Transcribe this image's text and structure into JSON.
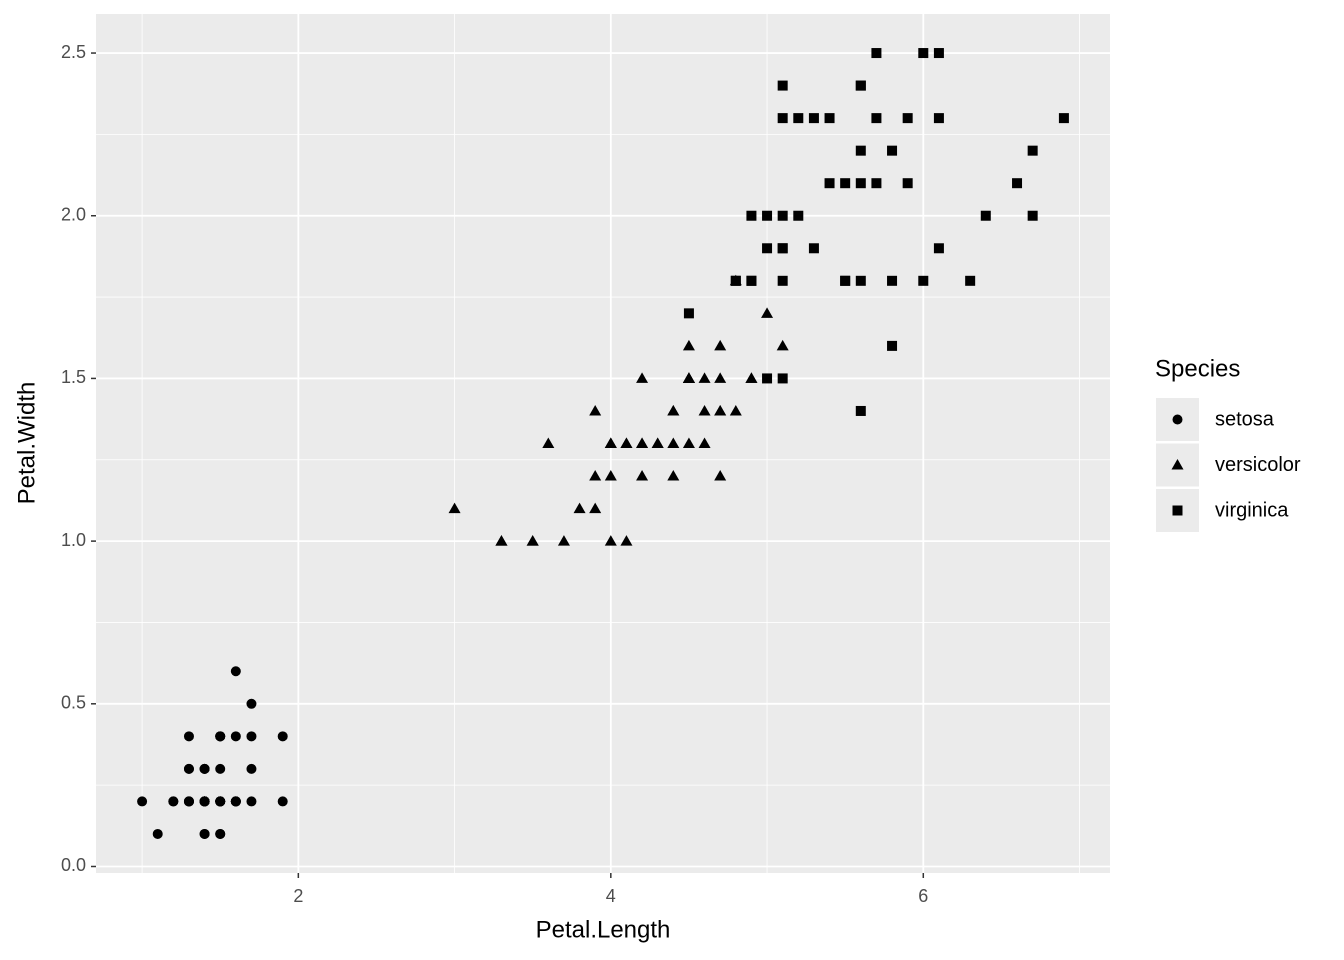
{
  "chart_data": {
    "type": "scatter",
    "xlabel": "Petal.Length",
    "ylabel": "Petal.Width",
    "legend_title": "Species",
    "legend_position": "right",
    "xlim": [
      0.705,
      7.195
    ],
    "ylim": [
      -0.02,
      2.62
    ],
    "xticks": [
      2,
      4,
      6
    ],
    "yticks": [
      {
        "value": 0,
        "label": "0.0"
      },
      0.5,
      {
        "value": 1,
        "label": "1.0"
      },
      1.5,
      {
        "value": 2,
        "label": "2.0"
      },
      2.5
    ],
    "grid": true,
    "series": [
      {
        "name": "setosa",
        "shape": "circle",
        "color": "#000000",
        "x": [
          1.4,
          1.4,
          1.3,
          1.5,
          1.4,
          1.7,
          1.4,
          1.5,
          1.4,
          1.5,
          1.5,
          1.6,
          1.4,
          1.1,
          1.2,
          1.5,
          1.3,
          1.4,
          1.7,
          1.5,
          1.7,
          1.5,
          1.0,
          1.7,
          1.9,
          1.6,
          1.6,
          1.5,
          1.4,
          1.6,
          1.6,
          1.5,
          1.5,
          1.4,
          1.5,
          1.2,
          1.3,
          1.4,
          1.3,
          1.5,
          1.3,
          1.3,
          1.3,
          1.6,
          1.9,
          1.4,
          1.6,
          1.4,
          1.5,
          1.4
        ],
        "values": [
          0.2,
          0.2,
          0.2,
          0.2,
          0.2,
          0.4,
          0.3,
          0.2,
          0.2,
          0.1,
          0.2,
          0.2,
          0.1,
          0.1,
          0.2,
          0.4,
          0.4,
          0.3,
          0.3,
          0.3,
          0.2,
          0.4,
          0.2,
          0.5,
          0.2,
          0.2,
          0.4,
          0.2,
          0.2,
          0.2,
          0.2,
          0.4,
          0.1,
          0.2,
          0.2,
          0.2,
          0.2,
          0.1,
          0.2,
          0.2,
          0.3,
          0.3,
          0.2,
          0.6,
          0.4,
          0.3,
          0.2,
          0.2,
          0.2,
          0.2
        ]
      },
      {
        "name": "versicolor",
        "shape": "triangle",
        "color": "#000000",
        "x": [
          4.7,
          4.5,
          4.9,
          4.0,
          4.6,
          4.5,
          4.7,
          3.3,
          4.6,
          3.9,
          3.5,
          4.2,
          4.0,
          4.7,
          3.6,
          4.4,
          4.5,
          4.1,
          4.5,
          3.9,
          4.8,
          4.0,
          4.9,
          4.7,
          4.3,
          4.4,
          4.8,
          5.0,
          4.5,
          3.5,
          3.8,
          3.7,
          3.9,
          5.1,
          4.5,
          4.5,
          4.7,
          4.4,
          4.1,
          4.0,
          4.4,
          4.6,
          4.0,
          3.3,
          4.2,
          4.2,
          4.2,
          4.3,
          3.0,
          4.1
        ],
        "values": [
          1.4,
          1.5,
          1.5,
          1.3,
          1.5,
          1.3,
          1.6,
          1.0,
          1.3,
          1.4,
          1.0,
          1.5,
          1.0,
          1.4,
          1.3,
          1.4,
          1.5,
          1.0,
          1.5,
          1.1,
          1.8,
          1.3,
          1.5,
          1.2,
          1.3,
          1.4,
          1.4,
          1.7,
          1.5,
          1.0,
          1.1,
          1.0,
          1.2,
          1.6,
          1.5,
          1.6,
          1.5,
          1.3,
          1.3,
          1.3,
          1.2,
          1.4,
          1.2,
          1.0,
          1.3,
          1.2,
          1.3,
          1.3,
          1.1,
          1.3
        ]
      },
      {
        "name": "virginica",
        "shape": "square",
        "color": "#000000",
        "x": [
          6.0,
          5.1,
          5.9,
          5.6,
          5.8,
          6.6,
          4.5,
          6.3,
          5.8,
          6.1,
          5.1,
          5.3,
          5.5,
          5.0,
          5.1,
          5.3,
          5.5,
          6.7,
          6.9,
          5.0,
          5.7,
          4.9,
          6.7,
          4.9,
          5.7,
          6.0,
          4.8,
          4.9,
          5.6,
          5.8,
          6.1,
          6.4,
          5.6,
          5.1,
          5.6,
          6.1,
          5.6,
          5.5,
          4.8,
          5.4,
          5.6,
          5.1,
          5.1,
          5.9,
          5.7,
          5.2,
          5.0,
          5.2,
          5.4,
          5.1
        ],
        "values": [
          2.5,
          1.9,
          2.1,
          1.8,
          2.2,
          2.1,
          1.7,
          1.8,
          1.8,
          2.5,
          2.0,
          1.9,
          2.1,
          2.0,
          2.4,
          2.3,
          1.8,
          2.2,
          2.3,
          1.5,
          2.3,
          2.0,
          2.0,
          1.8,
          2.1,
          1.8,
          1.8,
          1.8,
          2.1,
          1.6,
          1.9,
          2.0,
          2.2,
          1.5,
          1.4,
          2.3,
          2.4,
          1.8,
          1.8,
          2.1,
          2.4,
          2.3,
          1.9,
          2.3,
          2.5,
          2.3,
          1.9,
          2.0,
          2.3,
          1.8
        ]
      }
    ]
  }
}
